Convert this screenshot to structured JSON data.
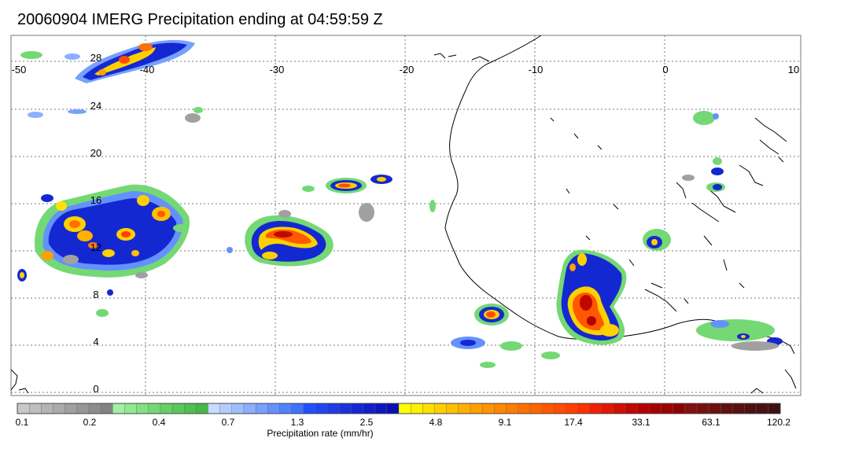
{
  "title": "20060904 IMERG Precipitation ending at 04:59:59 Z",
  "map": {
    "lon_labels": [
      "-50",
      "-40",
      "-30",
      "-20",
      "-10",
      "0",
      "10"
    ],
    "lat_labels": [
      "28",
      "24",
      "20",
      "16",
      "12",
      "8",
      "4",
      "0"
    ]
  },
  "colorbar": {
    "tick_labels": [
      "0.1",
      "0.2",
      "0.4",
      "0.7",
      "1.3",
      "2.5",
      "4.8",
      "9.1",
      "17.4",
      "33.1",
      "63.1",
      "120.2"
    ],
    "title": "Precipitation rate (mm/hr)",
    "colors": [
      "#c8c8c8",
      "#bebebe",
      "#b4b4b4",
      "#aaaaaa",
      "#a0a0a0",
      "#969696",
      "#8c8c8c",
      "#828282",
      "#a0f0a0",
      "#90e890",
      "#82e082",
      "#74d874",
      "#66d066",
      "#5ac85a",
      "#50c050",
      "#46b846",
      "#c8dcff",
      "#b4cdff",
      "#a0beff",
      "#8cafff",
      "#78a0ff",
      "#6491ff",
      "#5082ff",
      "#3c73ff",
      "#2050ff",
      "#1e46f0",
      "#1c3ce6",
      "#1a32dc",
      "#1428d2",
      "#1020c8",
      "#0c18be",
      "#0810b4",
      "#ffff00",
      "#fff000",
      "#ffe000",
      "#ffd000",
      "#ffc000",
      "#ffb000",
      "#ffa000",
      "#ff9400",
      "#ff8800",
      "#ff7c00",
      "#ff7000",
      "#ff6400",
      "#ff5800",
      "#ff4c00",
      "#ff4000",
      "#ff3000",
      "#f02000",
      "#e01800",
      "#d01000",
      "#c00800",
      "#b40000",
      "#a80000",
      "#9c0000",
      "#900000",
      "#841010",
      "#781010",
      "#6c1010",
      "#601010",
      "#581010",
      "#501010",
      "#481010",
      "#401010"
    ]
  }
}
